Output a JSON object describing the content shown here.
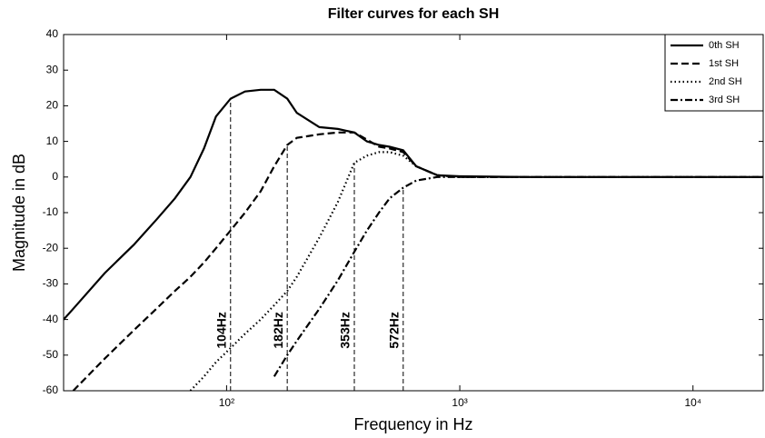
{
  "chart_data": {
    "type": "line",
    "title": "Filter curves for each SH",
    "xlabel": "Frequency in Hz",
    "ylabel": "Magnitude in dB",
    "xscale": "log",
    "xlim": [
      20,
      20000
    ],
    "ylim": [
      -60,
      40
    ],
    "xticks": [
      {
        "value": 100,
        "label": "10²"
      },
      {
        "value": 1000,
        "label": "10³"
      },
      {
        "value": 10000,
        "label": "10⁴"
      }
    ],
    "yticks": [
      -60,
      -50,
      -40,
      -30,
      -20,
      -10,
      0,
      10,
      20,
      30,
      40
    ],
    "legend": "upper right",
    "x": [
      20,
      22,
      30,
      40,
      50,
      60,
      70,
      80,
      90,
      104,
      120,
      140,
      160,
      182,
      200,
      250,
      300,
      353,
      400,
      450,
      500,
      572,
      650,
      800,
      1000,
      2000,
      5000,
      10000,
      20000
    ],
    "series": [
      {
        "name": "0th SH",
        "color": "#000000",
        "dash": "solid",
        "values": [
          -40,
          -37,
          -27,
          -19,
          -12,
          -6,
          0,
          8,
          17,
          22,
          24,
          24.5,
          24.5,
          22,
          18,
          14,
          13.5,
          12.5,
          10,
          9,
          8.5,
          7.5,
          3,
          0.5,
          0.2,
          0,
          0,
          0,
          0
        ]
      },
      {
        "name": "1st SH",
        "color": "#000000",
        "dash": "dashed",
        "values": [
          null,
          -60,
          -51,
          -43,
          -37,
          -32,
          -28,
          -24,
          -20,
          -15,
          -10,
          -4,
          3,
          9,
          11,
          12,
          12.5,
          12.5,
          10.5,
          8.5,
          8,
          7,
          3,
          0.5,
          0,
          0,
          0,
          0,
          0
        ]
      },
      {
        "name": "2nd SH",
        "color": "#000000",
        "dash": "dotted",
        "values": [
          null,
          null,
          null,
          null,
          null,
          null,
          -60,
          -56,
          -52,
          -48,
          -44,
          -40,
          -36,
          -32,
          -28,
          -17,
          -7,
          4,
          6,
          7,
          7,
          6,
          3,
          0.5,
          0,
          0,
          0,
          0,
          0
        ]
      },
      {
        "name": "3rd SH",
        "color": "#000000",
        "dash": "dashdot",
        "values": [
          null,
          null,
          null,
          null,
          null,
          null,
          null,
          null,
          null,
          null,
          null,
          null,
          -56,
          -50,
          -46,
          -37,
          -29,
          -21,
          -15,
          -10,
          -6,
          -3,
          -1,
          0,
          0,
          0,
          0,
          0,
          0
        ]
      }
    ],
    "annotations": [
      {
        "text": "104Hz",
        "x": 104,
        "y": 22
      },
      {
        "text": "182Hz",
        "x": 182,
        "y": 9
      },
      {
        "text": "353Hz",
        "x": 353,
        "y": 4
      },
      {
        "text": "572Hz",
        "x": 572,
        "y": -3
      }
    ]
  }
}
